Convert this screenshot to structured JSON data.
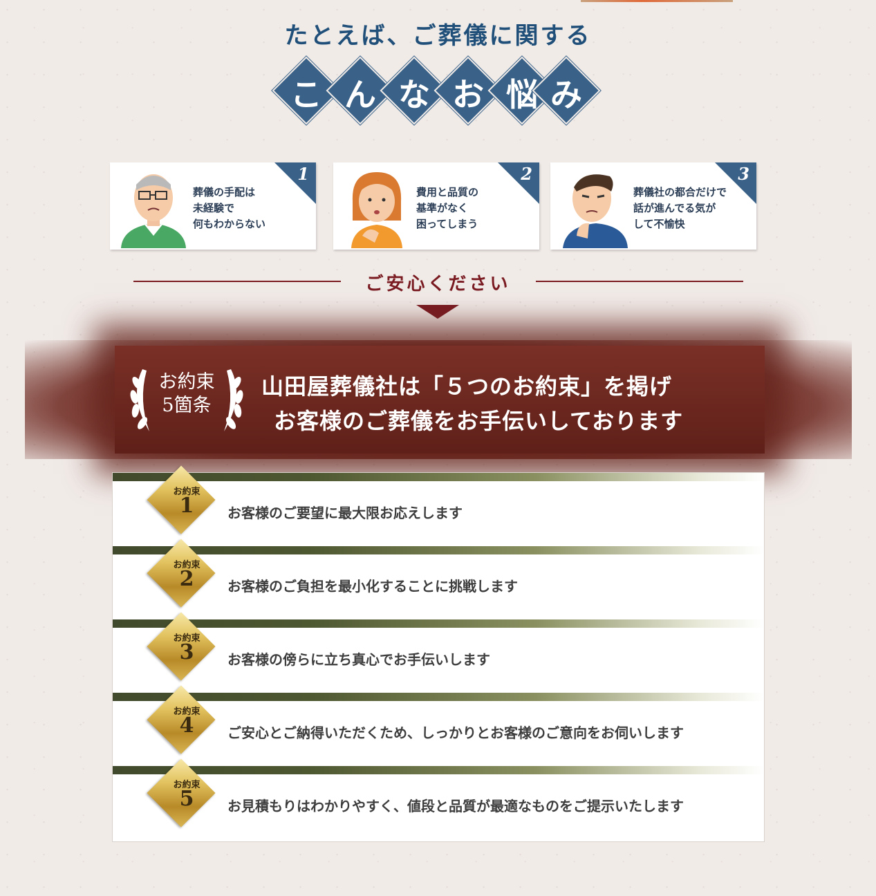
{
  "header": {
    "headline": "たとえば、ご葬儀に関する",
    "diamond_chars": [
      "こ",
      "ん",
      "な",
      "お",
      "悩",
      "み"
    ]
  },
  "problems": [
    {
      "number": "1",
      "text": "葬儀の手配は\n未経験で\n何もわからない",
      "avatar": "elderly-man-with-glasses"
    },
    {
      "number": "2",
      "text": "費用と品質の\n基準がなく\n困ってしまう",
      "avatar": "worried-woman"
    },
    {
      "number": "3",
      "text": "葬儀社の都合だけで\n話が進んでる気が\nして不愉快",
      "avatar": "annoyed-man"
    }
  ],
  "reassure": "ご安心ください",
  "banner": {
    "wreath_line1": "お約束",
    "wreath_line2": "5箇条",
    "line1": "山田屋葬儀社は「５つのお約束」を掲げ",
    "line2": "お客様のご葬儀をお手伝いしております"
  },
  "promises": [
    {
      "label": "お約束",
      "number": "1",
      "text": "お客様のご要望に最大限お応えします"
    },
    {
      "label": "お約束",
      "number": "2",
      "text": "お客様のご負担を最小化することに挑戦します"
    },
    {
      "label": "お約束",
      "number": "3",
      "text": "お客様の傍らに立ち真心でお手伝いします"
    },
    {
      "label": "お約束",
      "number": "4",
      "text": "ご安心とご納得いただくため、しっかりとお客様のご意向をお伺いします"
    },
    {
      "label": "お約束",
      "number": "5",
      "text": "お見積もりはわかりやすく、値段と品質が最適なものをご提示いたします"
    }
  ],
  "colors": {
    "navy": "#3a6289",
    "maroon": "#7a1b22",
    "banner": "#6f2820",
    "gold": "#d4ae4a",
    "olive": "#414a2c"
  }
}
